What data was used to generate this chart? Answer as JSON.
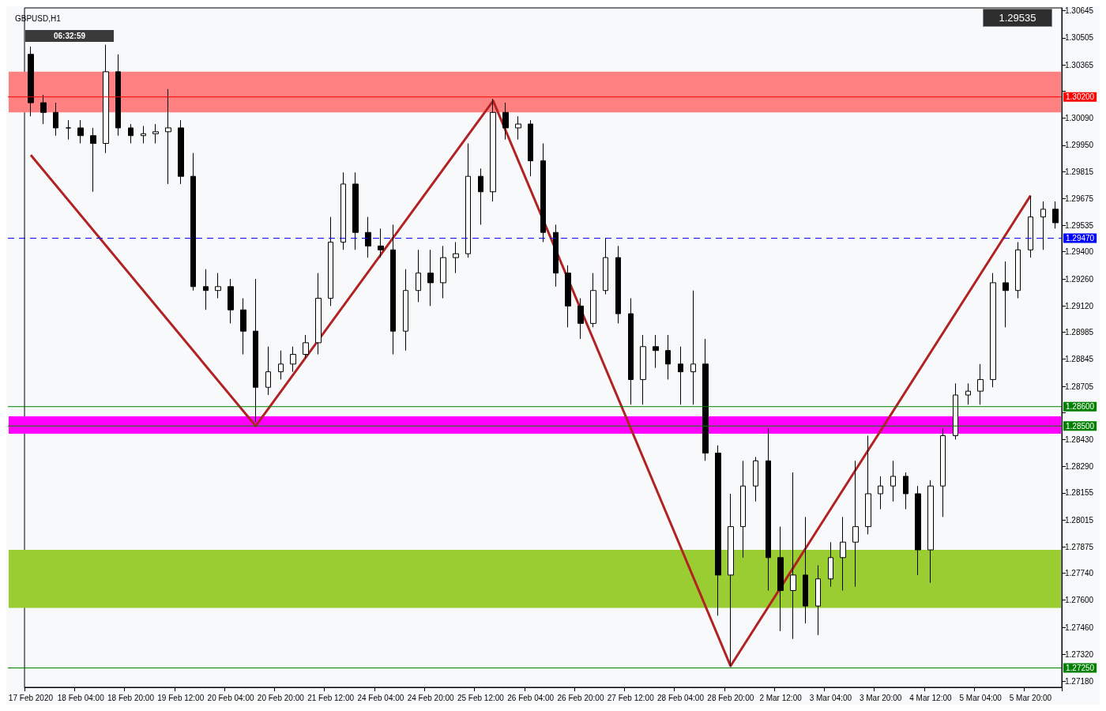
{
  "chart_data": {
    "type": "candlestick",
    "title": "GBPUSD,H1",
    "categories": [
      "17 Feb 2020",
      null,
      null,
      null,
      "18 Feb 04:00",
      null,
      null,
      null,
      "18 Feb 20:00",
      null,
      null,
      null,
      "19 Feb 12:00",
      null,
      null,
      null,
      "20 Feb 04:00",
      null,
      null,
      null,
      "20 Feb 20:00",
      null,
      null,
      null,
      "21 Feb 12:00",
      null,
      null,
      null,
      "24 Feb 04:00",
      null,
      null,
      null,
      "24 Feb 20:00",
      null,
      null,
      null,
      "25 Feb 12:00",
      null,
      null,
      null,
      "26 Feb 04:00",
      null,
      null,
      null,
      "26 Feb 20:00",
      null,
      null,
      null,
      "27 Feb 12:00",
      null,
      null,
      null,
      "28 Feb 04:00",
      null,
      null,
      null,
      "28 Feb 20:00",
      null,
      null,
      null,
      "2 Mar 12:00",
      null,
      null,
      null,
      "3 Mar 04:00",
      null,
      null,
      null,
      "3 Mar 20:00",
      null,
      null,
      null,
      "4 Mar 12:00",
      null,
      null,
      null,
      "5 Mar 04:00",
      null,
      null,
      null,
      "5 Mar 20:00",
      null,
      null
    ],
    "ohlc": [
      [
        1.3042,
        1.3046,
        1.301,
        1.3017
      ],
      [
        1.3017,
        1.3021,
        1.3006,
        1.3012
      ],
      [
        1.3012,
        1.3017,
        1.3,
        1.3004
      ],
      [
        1.3004,
        1.3008,
        1.2998,
        1.3004
      ],
      [
        1.3004,
        1.3008,
        1.2996,
        1.3
      ],
      [
        1.3,
        1.3004,
        1.2971,
        1.2996
      ],
      [
        1.2996,
        1.3047,
        1.2991,
        1.3033
      ],
      [
        1.3033,
        1.3042,
        1.3,
        1.3004
      ],
      [
        1.3004,
        1.3006,
        1.2996,
        1.3
      ],
      [
        1.3,
        1.3005,
        1.2996,
        1.3001
      ],
      [
        1.3001,
        1.3006,
        1.2996,
        1.3002
      ],
      [
        1.3002,
        1.3024,
        1.2975,
        1.3004
      ],
      [
        1.3004,
        1.3008,
        1.2975,
        1.2979
      ],
      [
        1.2979,
        1.2991,
        1.292,
        1.2922
      ],
      [
        1.2922,
        1.2931,
        1.291,
        1.292
      ],
      [
        1.292,
        1.2929,
        1.2916,
        1.2922
      ],
      [
        1.2922,
        1.2926,
        1.2903,
        1.291
      ],
      [
        1.291,
        1.2916,
        1.2887,
        1.2899
      ],
      [
        1.2899,
        1.2926,
        1.2852,
        1.287
      ],
      [
        1.287,
        1.2891,
        1.2866,
        1.2878
      ],
      [
        1.2878,
        1.2889,
        1.2874,
        1.2882
      ],
      [
        1.2882,
        1.2891,
        1.2878,
        1.2887
      ],
      [
        1.2887,
        1.2897,
        1.2885,
        1.2893
      ],
      [
        1.2893,
        1.2929,
        1.2887,
        1.2916
      ],
      [
        1.2916,
        1.2958,
        1.2912,
        1.2945
      ],
      [
        1.2945,
        1.2981,
        1.2941,
        1.2975
      ],
      [
        1.2975,
        1.2981,
        1.2941,
        1.295
      ],
      [
        1.295,
        1.2958,
        1.2937,
        1.2943
      ],
      [
        1.2943,
        1.2952,
        1.2937,
        1.2941
      ],
      [
        1.2941,
        1.2954,
        1.2887,
        1.2899
      ],
      [
        1.2899,
        1.2931,
        1.2889,
        1.292
      ],
      [
        1.292,
        1.2941,
        1.2914,
        1.2929
      ],
      [
        1.2929,
        1.2941,
        1.2912,
        1.2924
      ],
      [
        1.2924,
        1.2943,
        1.2916,
        1.2937
      ],
      [
        1.2937,
        1.2945,
        1.2929,
        1.2939
      ],
      [
        1.2939,
        1.2996,
        1.2937,
        1.2979
      ],
      [
        1.2979,
        1.2983,
        1.2954,
        1.2971
      ],
      [
        1.2971,
        1.3019,
        1.2966,
        1.3012
      ],
      [
        1.3012,
        1.3017,
        1.2998,
        1.3004
      ],
      [
        1.3004,
        1.301,
        1.2998,
        1.3006
      ],
      [
        1.3006,
        1.3008,
        1.2979,
        1.2987
      ],
      [
        1.2987,
        1.2996,
        1.2945,
        1.295
      ],
      [
        1.295,
        1.2954,
        1.2922,
        1.2929
      ],
      [
        1.2929,
        1.2933,
        1.2901,
        1.2912
      ],
      [
        1.2912,
        1.2916,
        1.2895,
        1.2903
      ],
      [
        1.2903,
        1.2929,
        1.2901,
        1.292
      ],
      [
        1.292,
        1.2947,
        1.2918,
        1.2937
      ],
      [
        1.2937,
        1.2943,
        1.2903,
        1.2908
      ],
      [
        1.2908,
        1.2916,
        1.2861,
        1.2874
      ],
      [
        1.2874,
        1.2897,
        1.2861,
        1.2891
      ],
      [
        1.2891,
        1.2897,
        1.288,
        1.2889
      ],
      [
        1.2889,
        1.2897,
        1.2874,
        1.2882
      ],
      [
        1.2882,
        1.2891,
        1.2861,
        1.2878
      ],
      [
        1.2878,
        1.292,
        1.2861,
        1.2882
      ],
      [
        1.2882,
        1.2895,
        1.2832,
        1.2836
      ],
      [
        1.2836,
        1.284,
        1.2752,
        1.2773
      ],
      [
        1.2773,
        1.2815,
        1.2726,
        1.2798
      ],
      [
        1.2798,
        1.2832,
        1.2782,
        1.2819
      ],
      [
        1.2819,
        1.2834,
        1.2811,
        1.2832
      ],
      [
        1.2832,
        1.2849,
        1.2765,
        1.2782
      ],
      [
        1.2782,
        1.2798,
        1.2744,
        1.2765
      ],
      [
        1.2765,
        1.2826,
        1.274,
        1.2773
      ],
      [
        1.2773,
        1.2803,
        1.2748,
        1.2757
      ],
      [
        1.2757,
        1.2778,
        1.2742,
        1.2771
      ],
      [
        1.2771,
        1.279,
        1.2767,
        1.2782
      ],
      [
        1.2782,
        1.2803,
        1.2765,
        1.279
      ],
      [
        1.279,
        1.2832,
        1.2767,
        1.2798
      ],
      [
        1.2798,
        1.2845,
        1.2794,
        1.2815
      ],
      [
        1.2815,
        1.2824,
        1.2807,
        1.2819
      ],
      [
        1.2819,
        1.2832,
        1.2811,
        1.2824
      ],
      [
        1.2824,
        1.2826,
        1.2807,
        1.2815
      ],
      [
        1.2815,
        1.2819,
        1.2773,
        1.2786
      ],
      [
        1.2786,
        1.2822,
        1.2769,
        1.2819
      ],
      [
        1.2819,
        1.2849,
        1.2803,
        1.2845
      ],
      [
        1.2845,
        1.2872,
        1.2843,
        1.2866
      ],
      [
        1.2866,
        1.2872,
        1.2861,
        1.2868
      ],
      [
        1.2868,
        1.2882,
        1.2861,
        1.2874
      ],
      [
        1.2874,
        1.2929,
        1.287,
        1.2924
      ],
      [
        1.2924,
        1.2935,
        1.2901,
        1.292
      ],
      [
        1.292,
        1.2945,
        1.2916,
        1.2941
      ],
      [
        1.2941,
        1.2969,
        1.2937,
        1.2958
      ],
      [
        1.2958,
        1.2966,
        1.2941,
        1.2962
      ],
      [
        1.2962,
        1.2966,
        1.2952,
        1.2955
      ]
    ],
    "series": [
      {
        "type": "line",
        "color": "#b22222",
        "values": [
          1.299,
          null,
          null,
          null,
          null,
          null,
          null,
          null,
          null,
          null,
          null,
          null,
          null,
          null,
          null,
          null,
          null,
          null,
          1.285,
          null,
          null,
          null,
          null,
          null,
          null,
          null,
          null,
          null,
          null,
          null,
          null,
          null,
          null,
          null,
          null,
          null,
          null,
          1.3018,
          null,
          null,
          null,
          null,
          null,
          null,
          null,
          null,
          null,
          null,
          null,
          null,
          null,
          null,
          null,
          null,
          null,
          null,
          1.2726,
          null,
          null,
          null,
          null,
          null,
          null,
          null,
          null,
          null,
          null,
          null,
          null,
          null,
          null,
          null,
          null,
          null,
          null,
          null,
          null,
          null,
          null,
          null,
          1.2969,
          null,
          null
        ]
      }
    ],
    "ylim": [
      1.2715,
      1.3066
    ],
    "yticks": [
      {
        "value": 1.30645,
        "label": "1.30645"
      },
      {
        "value": 1.30505,
        "label": "1.30505"
      },
      {
        "value": 1.30365,
        "label": "1.30365"
      },
      {
        "value": 1.3023,
        "label": null
      },
      {
        "value": 1.3009,
        "label": "1.30090"
      },
      {
        "value": 1.2995,
        "label": "1.29950"
      },
      {
        "value": 1.29815,
        "label": "1.29815"
      },
      {
        "value": 1.29675,
        "label": "1.29675"
      },
      {
        "value": 1.29535,
        "label": "1.29535"
      },
      {
        "value": 1.294,
        "label": "1.29400"
      },
      {
        "value": 1.2926,
        "label": "1.29260"
      },
      {
        "value": 1.2912,
        "label": "1.29120"
      },
      {
        "value": 1.28985,
        "label": "1.28985"
      },
      {
        "value": 1.28845,
        "label": "1.28845"
      },
      {
        "value": 1.28705,
        "label": "1.28705"
      },
      {
        "value": 1.2857,
        "label": null
      },
      {
        "value": 1.2843,
        "label": "1.28430"
      },
      {
        "value": 1.2829,
        "label": "1.28290"
      },
      {
        "value": 1.28155,
        "label": "1.28155"
      },
      {
        "value": 1.28015,
        "label": "1.28015"
      },
      {
        "value": 1.27875,
        "label": "1.27875"
      },
      {
        "value": 1.2774,
        "label": "1.27740"
      },
      {
        "value": 1.276,
        "label": "1.27600"
      },
      {
        "value": 1.2746,
        "label": "1.27460"
      },
      {
        "value": 1.2732,
        "label": "1.27320"
      },
      {
        "value": 1.2718,
        "label": "1.27180"
      }
    ],
    "ref_lines": [
      {
        "axis": "y",
        "value": 1.302,
        "label": "1.30200",
        "color": "#ff0000"
      },
      {
        "axis": "y",
        "value": 1.2947,
        "label": "1.29470",
        "color": "#0000ff",
        "line_style": "dashed"
      },
      {
        "axis": "y",
        "value": 1.286,
        "label": "1.28600",
        "color": "#008000"
      },
      {
        "axis": "y",
        "value": 1.285,
        "label": "1.28500",
        "color": "#008000"
      },
      {
        "axis": "y",
        "value": 1.2725,
        "label": "1.27250",
        "color": "#008000"
      }
    ],
    "bands": [
      {
        "axis": "y",
        "from": 1.3012,
        "to": 1.3033,
        "color": "#ff8080"
      },
      {
        "axis": "y",
        "from": 1.2756,
        "to": 1.2786,
        "color": "#9acd32"
      },
      {
        "axis": "y",
        "from": 1.2846,
        "to": 1.2855,
        "color": "#ff00ff"
      }
    ],
    "annotations": [
      "06:32:59",
      "1.29535"
    ]
  }
}
